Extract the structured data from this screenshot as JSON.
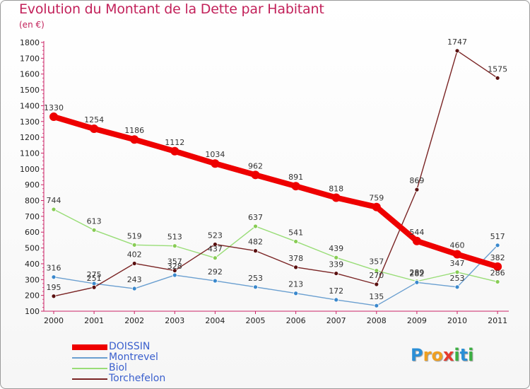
{
  "title": "Evolution du Montant de la Dette par Habitant",
  "unit_label": "(en €)",
  "logo": {
    "letters": [
      {
        "ch": "P",
        "color": "#2b8fd6"
      },
      {
        "ch": "r",
        "color": "#f0a020"
      },
      {
        "ch": "o",
        "color": "#f0a020"
      },
      {
        "ch": "x",
        "color": "#e63a2e"
      },
      {
        "ch": "i",
        "color": "#3cb043"
      },
      {
        "ch": "t",
        "color": "#2b8fd6"
      },
      {
        "ch": "i",
        "color": "#3cb043"
      }
    ]
  },
  "chart_data": {
    "type": "line",
    "title": "Evolution du Montant de la Dette par Habitant",
    "subtitle": "(en €)",
    "xlabel": "",
    "ylabel": "",
    "categories": [
      "2000",
      "2001",
      "2002",
      "2003",
      "2004",
      "2005",
      "2006",
      "2007",
      "2008",
      "2009",
      "2010",
      "2011"
    ],
    "ylim": [
      100,
      1800
    ],
    "yticks": [
      100,
      200,
      300,
      400,
      500,
      600,
      700,
      800,
      900,
      1000,
      1100,
      1200,
      1300,
      1400,
      1500,
      1600,
      1700,
      1800
    ],
    "grid": false,
    "legend_position": "bottom-left",
    "series": [
      {
        "name": "DOISSIN",
        "color": "#ee0000",
        "values": [
          1330,
          1254,
          1186,
          1112,
          1034,
          962,
          891,
          818,
          759,
          544,
          460,
          382
        ]
      },
      {
        "name": "Montrevel",
        "color": "#6a9fd0",
        "values": [
          316,
          275,
          243,
          328,
          292,
          253,
          213,
          172,
          135,
          282,
          253,
          517
        ]
      },
      {
        "name": "Biol",
        "color": "#99dd77",
        "values": [
          744,
          613,
          519,
          513,
          437,
          637,
          541,
          439,
          357,
          289,
          347,
          286
        ]
      },
      {
        "name": "Torchefelon",
        "color": "#7a2424",
        "values": [
          195,
          251,
          402,
          357,
          523,
          482,
          378,
          339,
          270,
          869,
          1747,
          1575
        ]
      }
    ]
  }
}
